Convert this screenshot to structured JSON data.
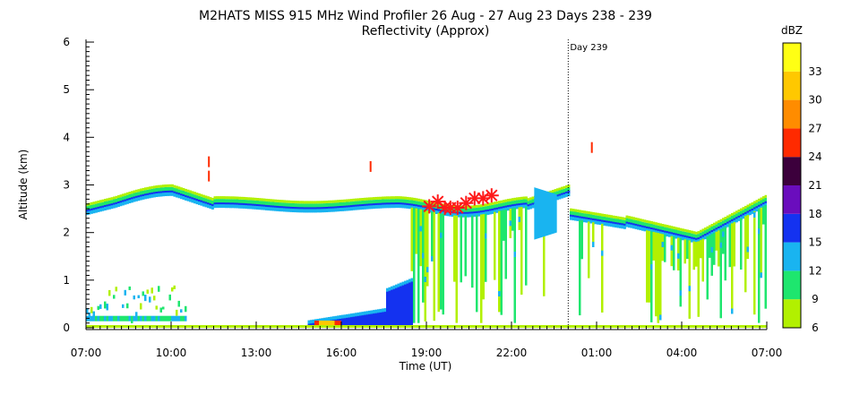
{
  "chart_data": {
    "type": "heatmap",
    "title": "M2HATS MISS 915 MHz Wind Profiler  26 Aug - 27 Aug 23 Days 238 - 239",
    "subtitle": "Reflectivity (Approx)",
    "xlabel": "Time (UT)",
    "ylabel": "Altitude (km)",
    "x_ticks": [
      "07:00",
      "10:00",
      "13:00",
      "16:00",
      "19:00",
      "22:00",
      "01:00",
      "04:00",
      "07:00"
    ],
    "y_ticks": [
      "0",
      "1",
      "2",
      "3",
      "4",
      "5",
      "6"
    ],
    "ylim": [
      0,
      6
    ],
    "x_range_hours": [
      0,
      24
    ],
    "day_marker": {
      "label": "Day 239",
      "x_hours": 17
    },
    "colorbar": {
      "unit": "dBZ",
      "ticks": [
        "6",
        "9",
        "12",
        "15",
        "18",
        "21",
        "24",
        "27",
        "30",
        "33"
      ],
      "colors": [
        "#b2f000",
        "#1ee66e",
        "#19b4f0",
        "#1432f0",
        "#6a0dbd",
        "#3c003c",
        "#ff2a00",
        "#ff8c00",
        "#ffc800",
        "#ffff14"
      ]
    },
    "boundary_layer_height_km": [
      [
        0.1,
        2.55
      ],
      [
        0.4,
        2.65
      ],
      [
        0.65,
        2.52
      ],
      [
        0.85,
        2.52
      ],
      [
        1.1,
        2.52
      ],
      [
        1.4,
        2.62
      ],
      [
        1.7,
        2.72
      ],
      [
        2.0,
        2.72
      ],
      [
        2.3,
        2.78
      ],
      [
        17.0,
        2.12
      ],
      [
        17.5,
        2.35
      ],
      [
        18.0,
        2.28
      ],
      [
        18.5,
        2.28
      ]
    ],
    "grid": false
  }
}
